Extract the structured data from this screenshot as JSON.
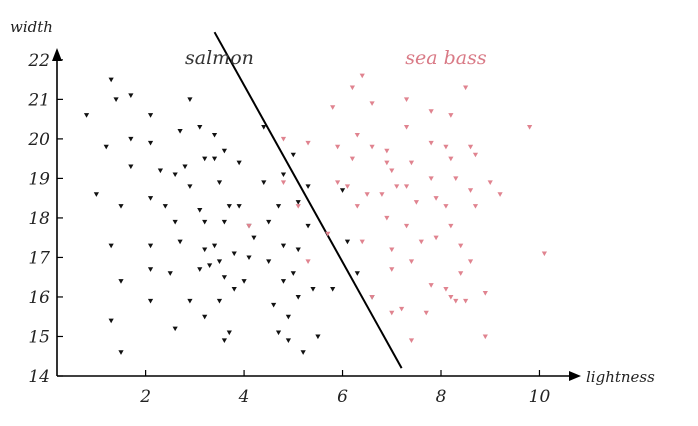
{
  "chart_data": {
    "type": "scatter",
    "xlabel": "lightness",
    "ylabel": "width",
    "xlim": [
      0.2,
      10.6
    ],
    "ylim": [
      14,
      22.3
    ],
    "x_ticks": [
      2,
      4,
      6,
      8,
      10
    ],
    "y_ticks": [
      14,
      15,
      16,
      17,
      18,
      19,
      20,
      21,
      22
    ],
    "grid": false,
    "annotations": [
      {
        "text": "salmon",
        "x": 3.5,
        "y": 21.9,
        "color": "#333333"
      },
      {
        "text": "sea bass",
        "x": 8.1,
        "y": 21.9,
        "color": "#d97a86"
      }
    ],
    "decision_boundary": {
      "x": [
        3.4,
        7.2
      ],
      "y": [
        22.7,
        14.2
      ],
      "color": "#000000"
    },
    "series": [
      {
        "name": "salmon",
        "color": "#111111",
        "points": [
          [
            0.8,
            20.6
          ],
          [
            1.3,
            21.5
          ],
          [
            1.4,
            21.0
          ],
          [
            1.7,
            21.1
          ],
          [
            1.2,
            19.8
          ],
          [
            1.7,
            20.0
          ],
          [
            1.7,
            19.3
          ],
          [
            1.0,
            18.6
          ],
          [
            1.5,
            18.3
          ],
          [
            1.3,
            17.3
          ],
          [
            1.5,
            16.4
          ],
          [
            1.3,
            15.4
          ],
          [
            1.5,
            14.6
          ],
          [
            2.1,
            20.6
          ],
          [
            2.1,
            19.9
          ],
          [
            2.3,
            19.2
          ],
          [
            2.1,
            18.5
          ],
          [
            2.4,
            18.3
          ],
          [
            2.1,
            17.3
          ],
          [
            2.1,
            16.7
          ],
          [
            2.1,
            15.9
          ],
          [
            2.5,
            16.6
          ],
          [
            2.6,
            17.9
          ],
          [
            2.6,
            19.1
          ],
          [
            2.9,
            21.0
          ],
          [
            2.7,
            20.2
          ],
          [
            3.1,
            20.3
          ],
          [
            2.8,
            19.3
          ],
          [
            2.9,
            18.8
          ],
          [
            3.2,
            19.5
          ],
          [
            3.4,
            20.1
          ],
          [
            3.4,
            19.5
          ],
          [
            3.1,
            18.2
          ],
          [
            3.2,
            17.9
          ],
          [
            3.2,
            17.2
          ],
          [
            2.7,
            17.4
          ],
          [
            3.1,
            16.7
          ],
          [
            2.9,
            15.9
          ],
          [
            3.2,
            15.5
          ],
          [
            2.6,
            15.2
          ],
          [
            3.5,
            18.9
          ],
          [
            3.6,
            19.7
          ],
          [
            3.7,
            18.3
          ],
          [
            3.6,
            17.9
          ],
          [
            3.4,
            17.3
          ],
          [
            3.5,
            16.9
          ],
          [
            3.3,
            16.8
          ],
          [
            3.6,
            16.5
          ],
          [
            3.8,
            16.2
          ],
          [
            3.8,
            17.1
          ],
          [
            3.5,
            15.9
          ],
          [
            3.7,
            15.1
          ],
          [
            3.6,
            14.9
          ],
          [
            3.9,
            19.4
          ],
          [
            3.9,
            18.3
          ],
          [
            4.1,
            17.8
          ],
          [
            4.1,
            17.0
          ],
          [
            4.2,
            17.5
          ],
          [
            4.0,
            16.4
          ],
          [
            4.4,
            20.3
          ],
          [
            4.4,
            18.9
          ],
          [
            4.5,
            17.9
          ],
          [
            4.5,
            16.9
          ],
          [
            4.6,
            15.8
          ],
          [
            4.7,
            18.3
          ],
          [
            4.8,
            17.3
          ],
          [
            4.8,
            16.4
          ],
          [
            4.9,
            15.5
          ],
          [
            4.7,
            15.1
          ],
          [
            4.9,
            14.9
          ],
          [
            4.8,
            19.1
          ],
          [
            5.0,
            19.6
          ],
          [
            5.1,
            18.4
          ],
          [
            5.1,
            17.2
          ],
          [
            5.0,
            16.6
          ],
          [
            5.1,
            16.0
          ],
          [
            5.2,
            14.6
          ],
          [
            5.3,
            18.8
          ],
          [
            5.3,
            17.8
          ],
          [
            5.4,
            16.2
          ],
          [
            5.5,
            15.0
          ],
          [
            5.8,
            16.2
          ],
          [
            6.0,
            18.7
          ],
          [
            6.1,
            17.4
          ],
          [
            6.3,
            16.6
          ],
          [
            6.6,
            16.0
          ]
        ]
      },
      {
        "name": "sea bass",
        "color": "#e0838f",
        "points": [
          [
            4.1,
            17.8
          ],
          [
            4.8,
            20.0
          ],
          [
            4.8,
            18.9
          ],
          [
            5.3,
            19.9
          ],
          [
            5.1,
            18.3
          ],
          [
            5.3,
            16.9
          ],
          [
            5.8,
            20.8
          ],
          [
            5.9,
            19.8
          ],
          [
            5.9,
            18.9
          ],
          [
            5.7,
            17.6
          ],
          [
            6.2,
            21.3
          ],
          [
            6.3,
            20.1
          ],
          [
            6.2,
            19.5
          ],
          [
            6.1,
            18.8
          ],
          [
            6.3,
            18.3
          ],
          [
            6.4,
            17.4
          ],
          [
            6.5,
            18.6
          ],
          [
            6.4,
            21.6
          ],
          [
            6.6,
            20.9
          ],
          [
            6.6,
            19.8
          ],
          [
            6.9,
            19.7
          ],
          [
            6.9,
            19.4
          ],
          [
            7.0,
            19.2
          ],
          [
            6.8,
            18.6
          ],
          [
            6.9,
            18.0
          ],
          [
            7.1,
            18.8
          ],
          [
            7.0,
            17.2
          ],
          [
            7.0,
            16.7
          ],
          [
            6.6,
            16.0
          ],
          [
            7.3,
            21.0
          ],
          [
            7.3,
            20.3
          ],
          [
            7.4,
            19.4
          ],
          [
            7.3,
            18.8
          ],
          [
            7.3,
            17.8
          ],
          [
            7.5,
            18.4
          ],
          [
            7.6,
            17.4
          ],
          [
            7.4,
            16.9
          ],
          [
            7.2,
            15.7
          ],
          [
            7.4,
            14.9
          ],
          [
            7.8,
            20.7
          ],
          [
            7.8,
            19.9
          ],
          [
            7.8,
            19.0
          ],
          [
            7.9,
            18.5
          ],
          [
            7.9,
            17.5
          ],
          [
            7.8,
            16.3
          ],
          [
            7.7,
            15.6
          ],
          [
            8.2,
            20.6
          ],
          [
            8.1,
            19.8
          ],
          [
            8.2,
            19.5
          ],
          [
            8.3,
            19.0
          ],
          [
            8.1,
            18.3
          ],
          [
            8.2,
            17.8
          ],
          [
            8.4,
            17.3
          ],
          [
            8.1,
            16.2
          ],
          [
            8.2,
            16.0
          ],
          [
            8.5,
            21.3
          ],
          [
            8.6,
            19.8
          ],
          [
            8.7,
            19.6
          ],
          [
            8.6,
            18.7
          ],
          [
            8.7,
            18.3
          ],
          [
            8.6,
            16.9
          ],
          [
            8.4,
            16.6
          ],
          [
            8.5,
            15.9
          ],
          [
            9.0,
            18.9
          ],
          [
            8.9,
            16.1
          ],
          [
            8.9,
            15.0
          ],
          [
            9.2,
            18.6
          ],
          [
            9.8,
            20.3
          ],
          [
            10.1,
            17.1
          ],
          [
            7.0,
            15.6
          ],
          [
            8.3,
            15.9
          ]
        ]
      }
    ]
  }
}
